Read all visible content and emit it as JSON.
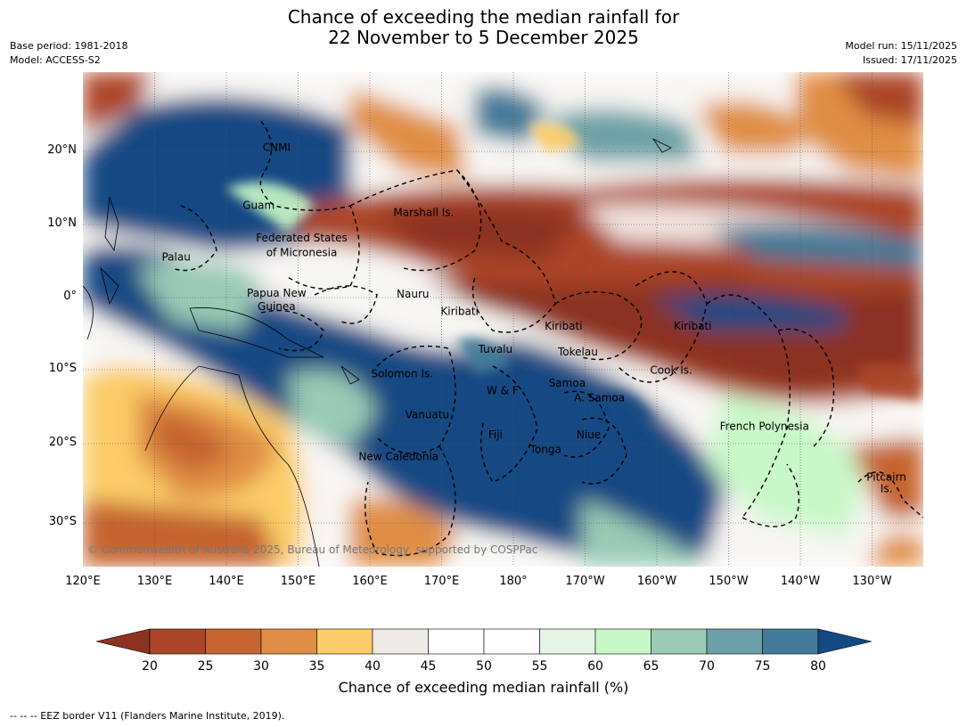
{
  "title": {
    "line1": "Chance of exceeding the median rainfall for",
    "line2": "22 November to 5 December 2025"
  },
  "meta_left": {
    "base_period": "Base period: 1981-2018",
    "model": "Model: ACCESS-S2"
  },
  "meta_right": {
    "model_run": "Model run: 15/11/2025",
    "issued": "Issued: 17/11/2025"
  },
  "copyright": "© Commonwealth of Australia 2025, Bureau of Meteorology, supported by COSPPac",
  "lon_ticks": [
    "120°E",
    "130°E",
    "140°E",
    "150°E",
    "160°E",
    "170°E",
    "180°",
    "170°W",
    "160°W",
    "150°W",
    "140°W",
    "130°W"
  ],
  "lat_ticks": [
    "20°N",
    "10°N",
    "0°",
    "10°S",
    "20°S",
    "30°S"
  ],
  "region_labels": [
    {
      "text": "CNMI",
      "lon": 147,
      "lat": 20.2
    },
    {
      "text": "Guam",
      "lon": 144.5,
      "lat": 12.2
    },
    {
      "text": "Marshall Is.",
      "lon": 167.5,
      "lat": 11.2
    },
    {
      "text": "Federated States",
      "lon": 150.5,
      "lat": 7.7
    },
    {
      "text": "of Micronesia",
      "lon": 150.5,
      "lat": 5.7
    },
    {
      "text": "Palau",
      "lon": 133,
      "lat": 5.1
    },
    {
      "text": "Papua New",
      "lon": 147,
      "lat": 0.1
    },
    {
      "text": "Guinea",
      "lon": 147,
      "lat": -1.7
    },
    {
      "text": "Nauru",
      "lon": 166,
      "lat": 0
    },
    {
      "text": "Kiribati",
      "lon": 172.5,
      "lat": -2.4
    },
    {
      "text": "Kiribati",
      "lon": -173,
      "lat": -4.4
    },
    {
      "text": "Kiribati",
      "lon": -155,
      "lat": -4.4
    },
    {
      "text": "Tuvalu",
      "lon": 177.5,
      "lat": -7.6
    },
    {
      "text": "Tokelau",
      "lon": -171,
      "lat": -8
    },
    {
      "text": "Cook Is.",
      "lon": -158,
      "lat": -10.5
    },
    {
      "text": "Solomon Is.",
      "lon": 164.5,
      "lat": -11
    },
    {
      "text": "Samoa",
      "lon": -172.5,
      "lat": -12.3
    },
    {
      "text": "W & F",
      "lon": 178.5,
      "lat": -13.3
    },
    {
      "text": "A. Samoa",
      "lon": -168,
      "lat": -14.3
    },
    {
      "text": "Vanuatu",
      "lon": 168,
      "lat": -16.6
    },
    {
      "text": "Fiji",
      "lon": 177.5,
      "lat": -19.4
    },
    {
      "text": "Niue",
      "lon": -169.5,
      "lat": -19.4
    },
    {
      "text": "Tonga",
      "lon": -175.5,
      "lat": -21.4
    },
    {
      "text": "French Polynesia",
      "lon": -145,
      "lat": -18.2
    },
    {
      "text": "New Caledonia",
      "lon": 164,
      "lat": -22.4
    },
    {
      "text": "Pitcairn",
      "lon": -128,
      "lat": -25.2
    },
    {
      "text": "Is.",
      "lon": -128,
      "lat": -26.8
    }
  ],
  "colorbar": {
    "label": "Chance of exceeding median rainfall (%)",
    "ticks": [
      "20",
      "25",
      "30",
      "35",
      "40",
      "45",
      "50",
      "55",
      "60",
      "65",
      "70",
      "75",
      "80"
    ],
    "under_color": "#8c3320",
    "over_color": "#134a83",
    "colors": [
      "#ac4528",
      "#c5642e",
      "#e08e45",
      "#fbcc68",
      "#eeebe6",
      "#ffffff",
      "#ffffff",
      "#e6f4e6",
      "#c8f8c8",
      "#99cbb5",
      "#6da0a6",
      "#437a98"
    ]
  },
  "footer": "--  --  -- EEZ border V11 (Flanders Marine Institute, 2019)."
}
